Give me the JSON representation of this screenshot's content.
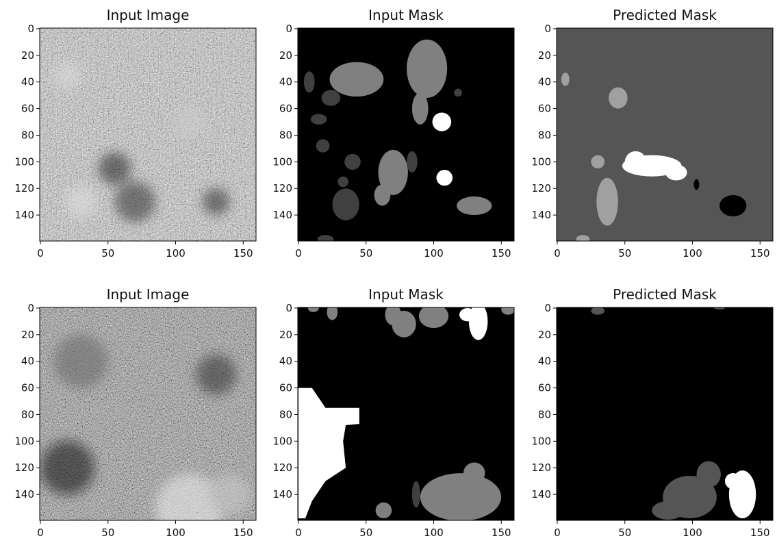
{
  "chart_data": [
    {
      "type": "image",
      "title": "Input Image",
      "xlim": [
        -0.5,
        159.5
      ],
      "ylim": [
        159.5,
        -0.5
      ],
      "xticks": [
        0,
        50,
        100,
        150
      ],
      "yticks": [
        0,
        20,
        40,
        60,
        80,
        100,
        120,
        140
      ]
    },
    {
      "type": "image",
      "title": "Input Mask",
      "xlim": [
        -0.5,
        159.5
      ],
      "ylim": [
        159.5,
        -0.5
      ],
      "xticks": [
        0,
        50,
        100,
        150
      ],
      "yticks": [
        0,
        20,
        40,
        60,
        80,
        100,
        120,
        140
      ]
    },
    {
      "type": "image",
      "title": "Predicted Mask",
      "xlim": [
        -0.5,
        159.5
      ],
      "ylim": [
        159.5,
        -0.5
      ],
      "xticks": [
        0,
        50,
        100,
        150
      ],
      "yticks": [
        0,
        20,
        40,
        60,
        80,
        100,
        120,
        140
      ]
    },
    {
      "type": "image",
      "title": "Input Image",
      "xlim": [
        -0.5,
        159.5
      ],
      "ylim": [
        159.5,
        -0.5
      ],
      "xticks": [
        0,
        50,
        100,
        150
      ],
      "yticks": [
        0,
        20,
        40,
        60,
        80,
        100,
        120,
        140
      ]
    },
    {
      "type": "image",
      "title": "Input Mask",
      "xlim": [
        -0.5,
        159.5
      ],
      "ylim": [
        159.5,
        -0.5
      ],
      "xticks": [
        0,
        50,
        100,
        150
      ],
      "yticks": [
        0,
        20,
        40,
        60,
        80,
        100,
        120,
        140
      ]
    },
    {
      "type": "image",
      "title": "Predicted Mask",
      "xlim": [
        -0.5,
        159.5
      ],
      "ylim": [
        159.5,
        -0.5
      ],
      "xticks": [
        0,
        50,
        100,
        150
      ],
      "yticks": [
        0,
        20,
        40,
        60,
        80,
        100,
        120,
        140
      ]
    }
  ]
}
